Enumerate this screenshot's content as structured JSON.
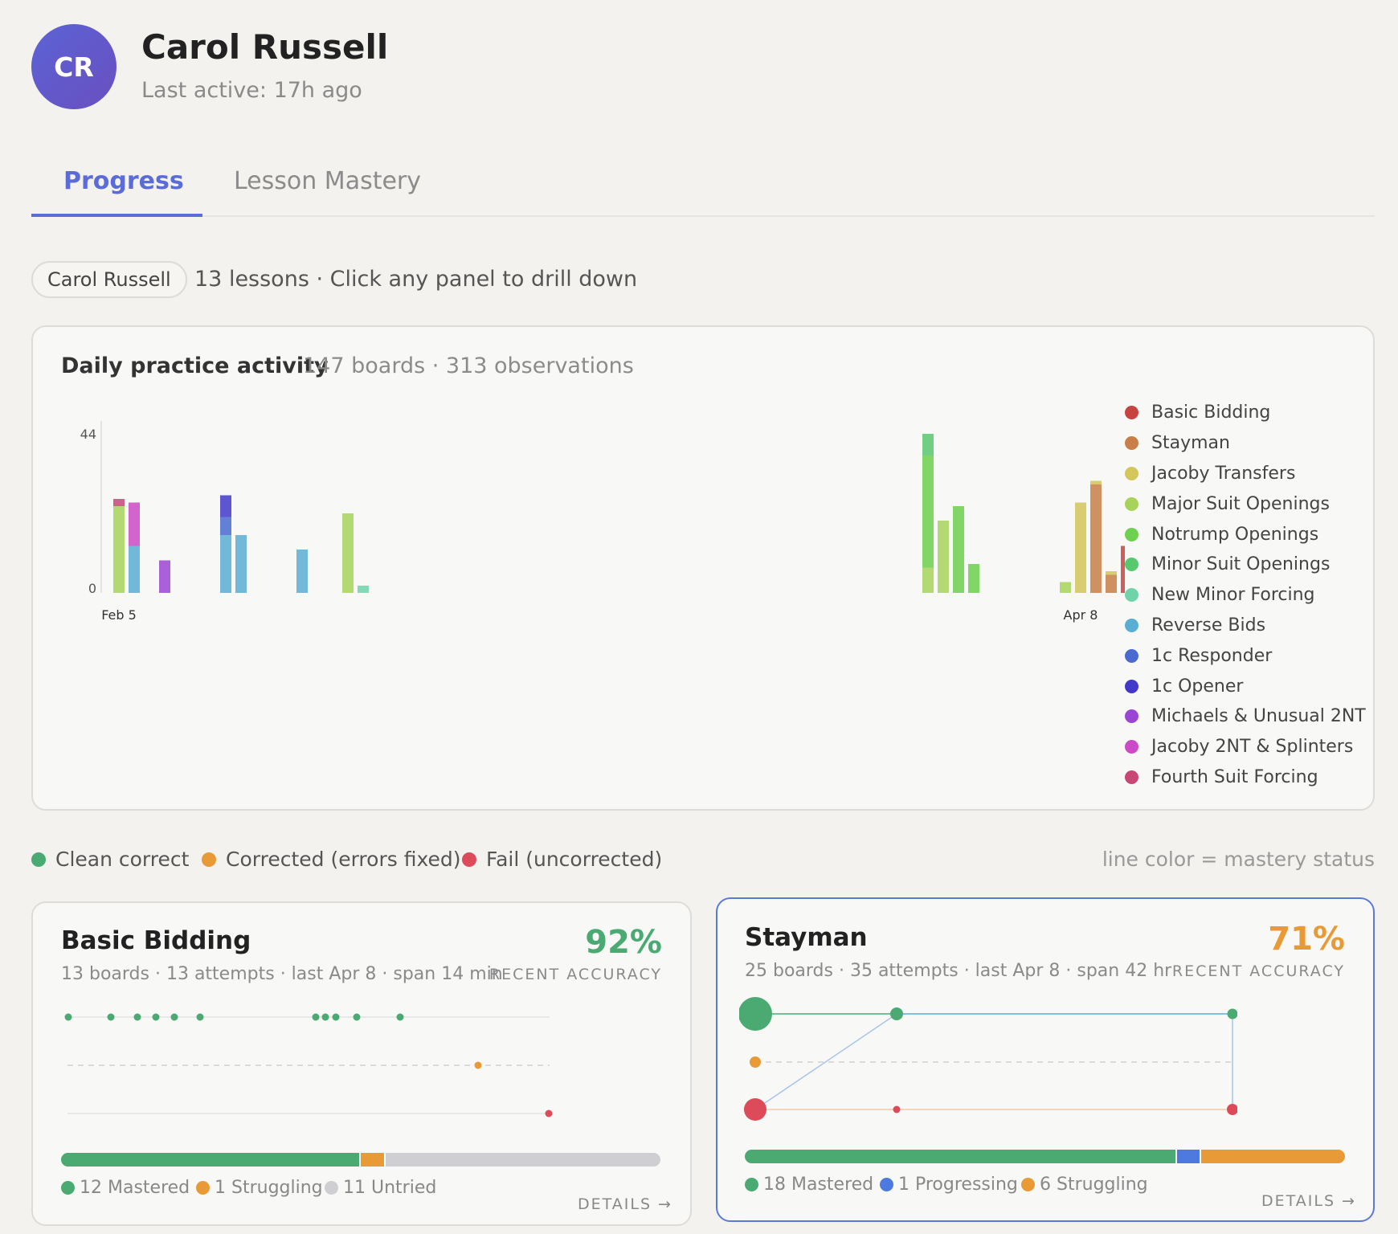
{
  "profile": {
    "initials": "CR",
    "name": "Carol Russell",
    "last_active": "Last active: 17h ago"
  },
  "tabs": [
    {
      "label": "Progress"
    },
    {
      "label": "Lesson Mastery"
    }
  ],
  "filter": {
    "chip": "Carol Russell",
    "summary": "13 lessons · Click any panel to drill down"
  },
  "activity": {
    "title": "Daily practice activity",
    "subtitle": "147 boards · 313 observations",
    "legend": [
      {
        "label": "Basic Bidding",
        "color": "#c8433f"
      },
      {
        "label": "Stayman",
        "color": "#c97f47"
      },
      {
        "label": "Jacoby Transfers",
        "color": "#d3c65a"
      },
      {
        "label": "Major Suit Openings",
        "color": "#a7d35a"
      },
      {
        "label": "Notrump Openings",
        "color": "#6dd04f"
      },
      {
        "label": "Minor Suit Openings",
        "color": "#58c86e"
      },
      {
        "label": "New Minor Forcing",
        "color": "#6fd3a9"
      },
      {
        "label": "Reverse Bids",
        "color": "#5aaed4"
      },
      {
        "label": "1c Responder",
        "color": "#4a6ad0"
      },
      {
        "label": "1c Opener",
        "color": "#4338c9"
      },
      {
        "label": "Michaels & Unusual 2NT",
        "color": "#9b45d4"
      },
      {
        "label": "Jacoby 2NT & Splinters",
        "color": "#cc4ac6"
      },
      {
        "label": "Fourth Suit Forcing",
        "color": "#c94774"
      }
    ]
  },
  "chart_data": {
    "type": "bar",
    "stacked": true,
    "ylim": [
      0,
      44
    ],
    "yticks": [
      "0",
      "44"
    ],
    "xticks": [
      "Feb 5",
      "Apr 8"
    ],
    "x_range": [
      "Feb 5",
      "Apr 8"
    ],
    "bars": [
      {
        "day": "Feb 5",
        "segments": [
          {
            "lesson": "Major Suit Openings",
            "value": 24
          },
          {
            "lesson": "Fourth Suit Forcing",
            "value": 2
          }
        ]
      },
      {
        "day": "Feb 6",
        "segments": [
          {
            "lesson": "Reverse Bids",
            "value": 13
          },
          {
            "lesson": "Jacoby 2NT & Splinters",
            "value": 12
          }
        ]
      },
      {
        "day": "Feb 8",
        "segments": [
          {
            "lesson": "Michaels & Unusual 2NT",
            "value": 9
          }
        ]
      },
      {
        "day": "Feb 12",
        "segments": [
          {
            "lesson": "Reverse Bids",
            "value": 16
          },
          {
            "lesson": "1c Responder",
            "value": 5
          },
          {
            "lesson": "1c Opener",
            "value": 6
          }
        ]
      },
      {
        "day": "Feb 13",
        "segments": [
          {
            "lesson": "Reverse Bids",
            "value": 16
          }
        ]
      },
      {
        "day": "Feb 17",
        "segments": [
          {
            "lesson": "Reverse Bids",
            "value": 12
          }
        ]
      },
      {
        "day": "Feb 20",
        "segments": [
          {
            "lesson": "Major Suit Openings",
            "value": 22
          }
        ]
      },
      {
        "day": "Feb 21",
        "segments": [
          {
            "lesson": "New Minor Forcing",
            "value": 2
          }
        ]
      },
      {
        "day": "Mar 29",
        "segments": [
          {
            "lesson": "Major Suit Openings",
            "value": 7
          },
          {
            "lesson": "Notrump Openings",
            "value": 31
          },
          {
            "lesson": "Minor Suit Openings",
            "value": 6
          }
        ]
      },
      {
        "day": "Mar 30",
        "segments": [
          {
            "lesson": "Major Suit Openings",
            "value": 20
          }
        ]
      },
      {
        "day": "Mar 31",
        "segments": [
          {
            "lesson": "Notrump Openings",
            "value": 24
          }
        ]
      },
      {
        "day": "Apr 1",
        "segments": [
          {
            "lesson": "Notrump Openings",
            "value": 8
          }
        ]
      },
      {
        "day": "Apr 7",
        "segments": [
          {
            "lesson": "Major Suit Openings",
            "value": 3
          }
        ]
      },
      {
        "day": "Apr 8",
        "segments": [
          {
            "lesson": "Jacoby Transfers",
            "value": 25
          }
        ]
      },
      {
        "day": "Apr 9",
        "segments": [
          {
            "lesson": "Stayman",
            "value": 30
          },
          {
            "lesson": "Jacoby Transfers",
            "value": 1
          }
        ]
      },
      {
        "day": "Apr 10",
        "segments": [
          {
            "lesson": "Stayman",
            "value": 5
          },
          {
            "lesson": "Jacoby Transfers",
            "value": 1
          }
        ]
      },
      {
        "day": "Apr 11",
        "segments": [
          {
            "lesson": "Basic Bidding",
            "value": 13
          }
        ]
      }
    ]
  },
  "key": {
    "clean": {
      "label": "Clean correct",
      "color": "#4aaa72"
    },
    "corrected": {
      "label": "Corrected (errors fixed)",
      "color": "#e79a36"
    },
    "fail": {
      "label": "Fail (uncorrected)",
      "color": "#dd4a5a"
    },
    "note": "line color = mastery status"
  },
  "cards": {
    "basic_bidding": {
      "title": "Basic Bidding",
      "meta": "13 boards · 13 attempts · last Apr 8 · span 14 min",
      "accuracy": "92%",
      "accuracy_color": "#4aaa72",
      "accuracy_label": "RECENT ACCURACY",
      "mastery": {
        "mastered": 12,
        "struggling": 1,
        "untried": 11
      },
      "stats": {
        "mastered": "12 Mastered",
        "struggling": "1 Struggling",
        "untried": "11 Untried"
      },
      "details": "DETAILS →"
    },
    "stayman": {
      "title": "Stayman",
      "meta": "25 boards · 35 attempts · last Apr 8 · span 42 hr",
      "accuracy": "71%",
      "accuracy_color": "#e79a36",
      "accuracy_label": "RECENT ACCURACY",
      "mastery": {
        "mastered": 18,
        "progressing": 1,
        "struggling": 6
      },
      "stats": {
        "mastered": "18 Mastered",
        "progressing": "1 Progressing",
        "struggling": "6 Struggling"
      },
      "details": "DETAILS →"
    }
  }
}
